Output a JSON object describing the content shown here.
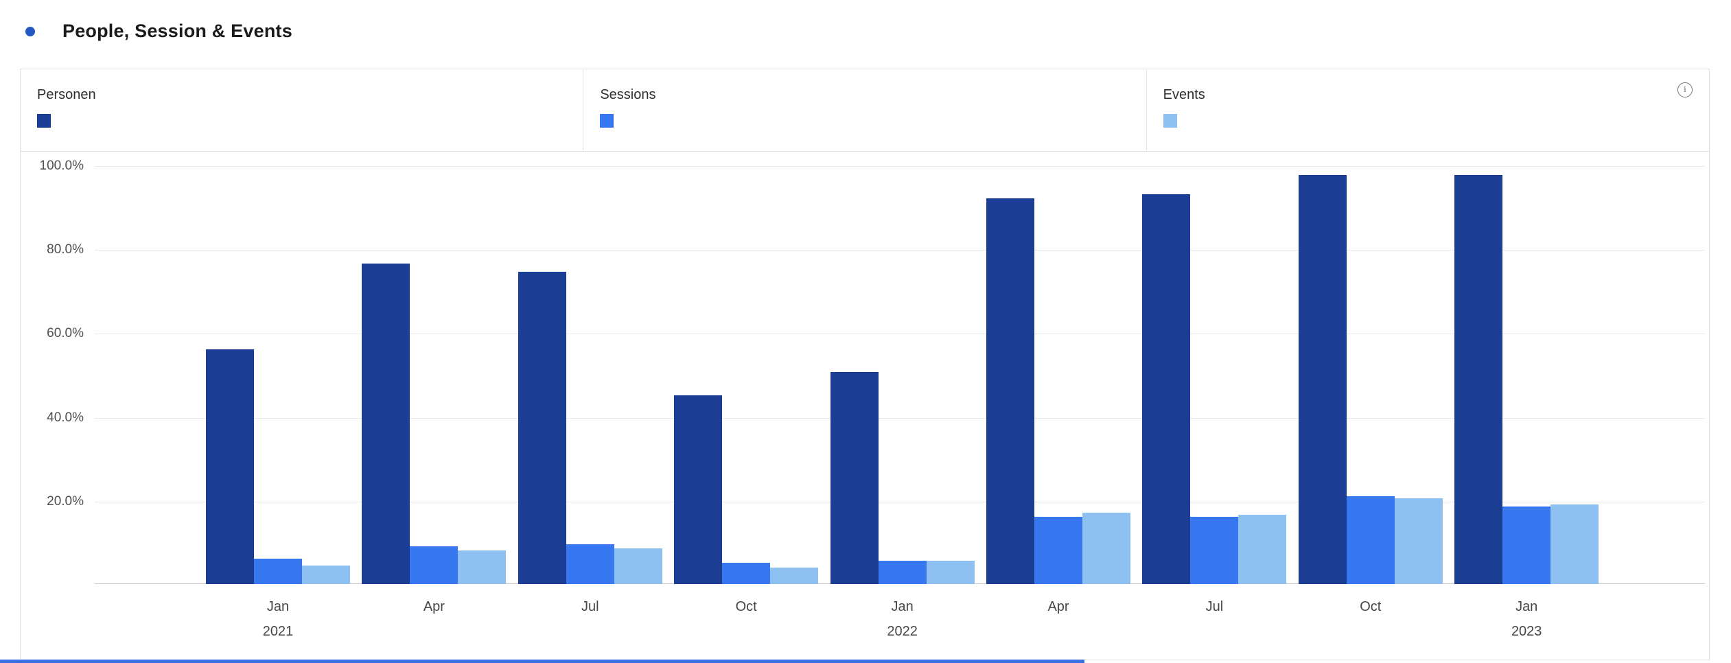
{
  "header": {
    "title": "People, Session & Events",
    "bullet_color": "#2257c4"
  },
  "icons": {
    "info": "i"
  },
  "legend": {
    "items": [
      {
        "label": "Personen",
        "color": "#1b3e94"
      },
      {
        "label": "Sessions",
        "color": "#3778f0"
      },
      {
        "label": "Events",
        "color": "#8fc0f2"
      }
    ]
  },
  "chart_data": {
    "type": "bar",
    "title": "People, Session & Events",
    "categories": [
      "Jan 2021",
      "Apr 2021",
      "Jul 2021",
      "Oct 2021",
      "Jan 2022",
      "Apr 2022",
      "Jul 2022",
      "Oct 2022",
      "Jan 2023"
    ],
    "x_ticks": [
      {
        "month": "Jan",
        "year": "2021"
      },
      {
        "month": "Apr",
        "year": ""
      },
      {
        "month": "Jul",
        "year": ""
      },
      {
        "month": "Oct",
        "year": ""
      },
      {
        "month": "Jan",
        "year": "2022"
      },
      {
        "month": "Apr",
        "year": ""
      },
      {
        "month": "Jul",
        "year": ""
      },
      {
        "month": "Oct",
        "year": ""
      },
      {
        "month": "Jan",
        "year": "2023"
      }
    ],
    "series": [
      {
        "name": "Personen",
        "color": "#1b3e94",
        "values": [
          56,
          76.5,
          74.5,
          45,
          50.5,
          92,
          93,
          97.5,
          97.5
        ]
      },
      {
        "name": "Sessions",
        "color": "#3778f0",
        "values": [
          6,
          9,
          9.5,
          5,
          5.5,
          16,
          16,
          21,
          18.5
        ]
      },
      {
        "name": "Events",
        "color": "#8fc0f2",
        "values": [
          4.5,
          8,
          8.5,
          4,
          5.5,
          17,
          16.5,
          20.5,
          19
        ]
      }
    ],
    "ylim": [
      0,
      100
    ],
    "y_ticks": [
      {
        "value": 100,
        "label": "100.0%"
      },
      {
        "value": 80,
        "label": "80.0%"
      },
      {
        "value": 60,
        "label": "60.0%"
      },
      {
        "value": 40,
        "label": "40.0%"
      },
      {
        "value": 20,
        "label": "20.0%"
      }
    ],
    "grid": true,
    "legend_position": "top"
  },
  "bottom_bar_fragment": {
    "color": "#3a70e2"
  }
}
